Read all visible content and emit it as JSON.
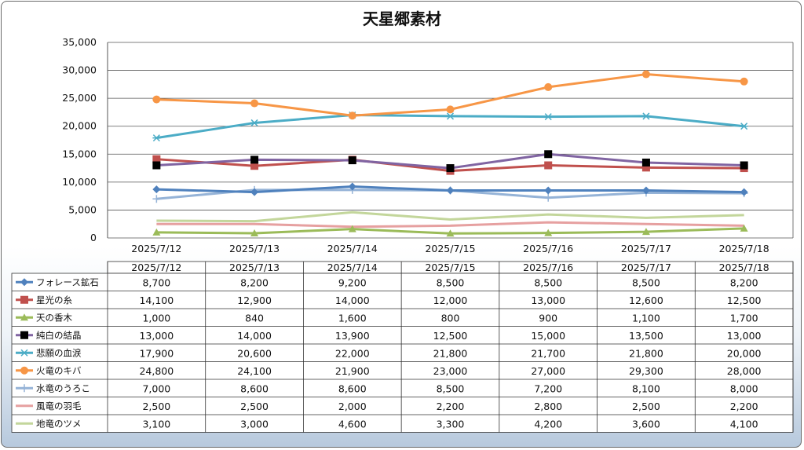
{
  "chart_data": {
    "type": "line",
    "title": "天星郷素材",
    "categories": [
      "2025/7/12",
      "2025/7/13",
      "2025/7/14",
      "2025/7/15",
      "2025/7/16",
      "2025/7/17",
      "2025/7/18"
    ],
    "ylim": [
      0,
      35000
    ],
    "yticks": [
      "0",
      "5,000",
      "10,000",
      "15,000",
      "20,000",
      "25,000",
      "30,000",
      "35,000"
    ],
    "grid": true,
    "legend": "data-table",
    "series": [
      {
        "name": "フォレース鉱石",
        "color": "#4f81bd",
        "marker": "diamond",
        "values": [
          8700,
          8200,
          9200,
          8500,
          8500,
          8500,
          8200
        ],
        "labels": [
          "8,700",
          "8,200",
          "9,200",
          "8,500",
          "8,500",
          "8,500",
          "8,200"
        ]
      },
      {
        "name": "星光の糸",
        "color": "#c0504d",
        "marker": "square",
        "values": [
          14100,
          12900,
          14000,
          12000,
          13000,
          12600,
          12500
        ],
        "labels": [
          "14,100",
          "12,900",
          "14,000",
          "12,000",
          "13,000",
          "12,600",
          "12,500"
        ]
      },
      {
        "name": "天の香木",
        "color": "#9bbb59",
        "marker": "triangle",
        "values": [
          1000,
          840,
          1600,
          800,
          900,
          1100,
          1700
        ],
        "labels": [
          "1,000",
          "840",
          "1,600",
          "800",
          "900",
          "1,100",
          "1,700"
        ]
      },
      {
        "name": "純白の結晶",
        "color": "#8064a2",
        "marker": "square-black",
        "values": [
          13000,
          14000,
          13900,
          12500,
          15000,
          13500,
          13000
        ],
        "labels": [
          "13,000",
          "14,000",
          "13,900",
          "12,500",
          "15,000",
          "13,500",
          "13,000"
        ]
      },
      {
        "name": "悲願の血涙",
        "color": "#4bacc6",
        "marker": "star",
        "values": [
          17900,
          20600,
          22000,
          21800,
          21700,
          21800,
          20000
        ],
        "labels": [
          "17,900",
          "20,600",
          "22,000",
          "21,800",
          "21,700",
          "21,800",
          "20,000"
        ]
      },
      {
        "name": "火竜のキバ",
        "color": "#f79646",
        "marker": "circle",
        "values": [
          24800,
          24100,
          21900,
          23000,
          27000,
          29300,
          28000
        ],
        "labels": [
          "24,800",
          "24,100",
          "21,900",
          "23,000",
          "27,000",
          "29,300",
          "28,000"
        ]
      },
      {
        "name": "水竜のうろこ",
        "color": "#95b3d7",
        "marker": "plus",
        "values": [
          7000,
          8600,
          8600,
          8500,
          7200,
          8100,
          8000
        ],
        "labels": [
          "7,000",
          "8,600",
          "8,600",
          "8,500",
          "7,200",
          "8,100",
          "8,000"
        ]
      },
      {
        "name": "風竜の羽毛",
        "color": "#e6a0a0",
        "marker": "none",
        "values": [
          2500,
          2500,
          2000,
          2200,
          2800,
          2500,
          2200
        ],
        "labels": [
          "2,500",
          "2,500",
          "2,000",
          "2,200",
          "2,800",
          "2,500",
          "2,200"
        ]
      },
      {
        "name": "地竜のツメ",
        "color": "#c3d69b",
        "marker": "none",
        "values": [
          3100,
          3000,
          4600,
          3300,
          4200,
          3600,
          4100
        ],
        "labels": [
          "3,100",
          "3,000",
          "4,600",
          "3,300",
          "4,200",
          "3,600",
          "4,100"
        ]
      }
    ]
  }
}
